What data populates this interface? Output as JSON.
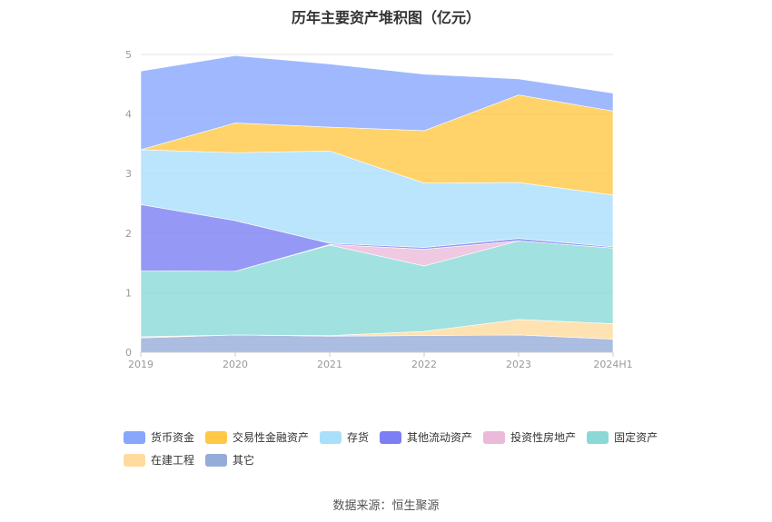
{
  "chart_data": {
    "type": "area",
    "stacked": true,
    "title": "历年主要资产堆积图（亿元）",
    "categories": [
      "2019",
      "2020",
      "2021",
      "2022",
      "2023",
      "2024H1"
    ],
    "ylim": [
      0,
      5
    ],
    "yticks": [
      0,
      1,
      2,
      3,
      4,
      5
    ],
    "grid": true,
    "legend_position": "bottom",
    "series": [
      {
        "name": "其它",
        "color": "#96acd8",
        "values": [
          0.24,
          0.29,
          0.27,
          0.28,
          0.29,
          0.22
        ]
      },
      {
        "name": "在建工程",
        "color": "#ffdb9e",
        "values": [
          0.02,
          0.0,
          0.01,
          0.07,
          0.26,
          0.26
        ]
      },
      {
        "name": "固定资产",
        "color": "#8ad9d7",
        "values": [
          1.11,
          1.07,
          1.52,
          1.1,
          1.32,
          1.27
        ]
      },
      {
        "name": "投资性房地产",
        "color": "#ebbad9",
        "values": [
          0.0,
          0.0,
          0.01,
          0.28,
          0.0,
          0.0
        ]
      },
      {
        "name": "其他流动资产",
        "color": "#7b7ff2",
        "values": [
          1.11,
          0.85,
          0.02,
          0.03,
          0.04,
          0.02
        ]
      },
      {
        "name": "存货",
        "color": "#a9dffb",
        "values": [
          0.92,
          1.14,
          1.55,
          1.08,
          0.94,
          0.87
        ]
      },
      {
        "name": "交易性金融资产",
        "color": "#ffc845",
        "values": [
          0.0,
          0.5,
          0.4,
          0.88,
          1.47,
          1.41
        ]
      },
      {
        "name": "货币资金",
        "color": "#88a6fc",
        "values": [
          1.32,
          1.13,
          1.06,
          0.95,
          0.27,
          0.3
        ]
      }
    ],
    "legend_order": [
      "货币资金",
      "交易性金融资产",
      "存货",
      "其他流动资产",
      "投资性房地产",
      "固定资产",
      "在建工程",
      "其它"
    ]
  },
  "source_text": "数据来源：恒生聚源"
}
